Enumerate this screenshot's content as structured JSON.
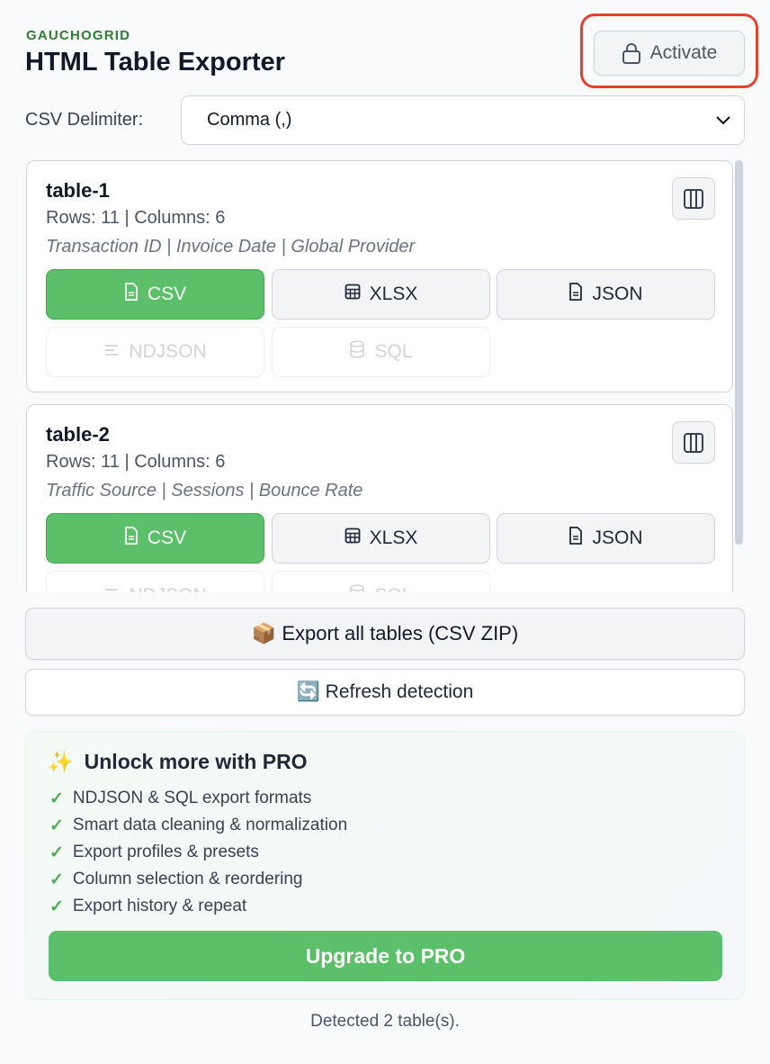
{
  "header": {
    "brand": "GAUCHOGRID",
    "title": "HTML Table Exporter",
    "activate_label": "Activate",
    "activate_icon": "lock-icon",
    "highlight_color": "#e5412d"
  },
  "delimiter": {
    "label": "CSV Delimiter:",
    "selected": "Comma (,)"
  },
  "tables": [
    {
      "name": "table-1",
      "meta": "Rows: 11 | Columns: 6",
      "columns": "Transaction ID | Invoice Date | Global Provider",
      "buttons": {
        "csv": "CSV",
        "xlsx": "XLSX",
        "json": "JSON",
        "ndjson": "NDJSON",
        "sql": "SQL"
      }
    },
    {
      "name": "table-2",
      "meta": "Rows: 11 | Columns: 6",
      "columns": "Traffic Source | Sessions | Bounce Rate",
      "buttons": {
        "csv": "CSV",
        "xlsx": "XLSX",
        "json": "JSON",
        "ndjson": "NDJSON",
        "sql": "SQL"
      }
    }
  ],
  "actions": {
    "export_all": "📦 Export all tables (CSV ZIP)",
    "refresh": "🔄 Refresh detection"
  },
  "pro": {
    "icon": "✨",
    "title": "Unlock more with PRO",
    "features": [
      "NDJSON & SQL export formats",
      "Smart data cleaning & normalization",
      "Export profiles & presets",
      "Column selection & reordering",
      "Export history & repeat"
    ],
    "upgrade_label": "Upgrade to PRO"
  },
  "footer": {
    "status": "Detected 2 table(s)."
  },
  "colors": {
    "accent": "#5cbf6a",
    "brand": "#2e7d32"
  }
}
